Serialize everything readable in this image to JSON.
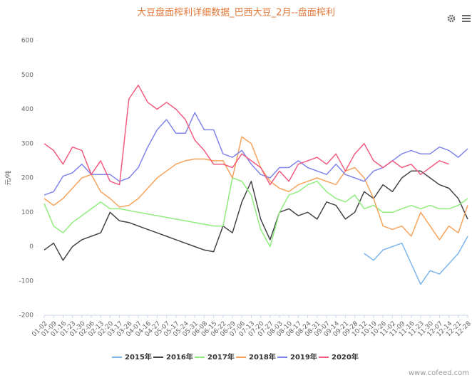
{
  "chart_data": {
    "type": "line",
    "title": "大豆盘面榨利详细数据_巴西大豆_2月--盘面榨利",
    "y_label": "元/吨",
    "source": "www.cofeed.com",
    "categories": [
      "01-02",
      "01-09",
      "01-16",
      "01-23",
      "01-30",
      "02-06",
      "02-13",
      "02-20",
      "03-17",
      "03-26",
      "04-07",
      "04-16",
      "04-27",
      "05-07",
      "05-17",
      "05-24",
      "05-31",
      "06-08",
      "06-15",
      "06-22",
      "06-29",
      "07-06",
      "07-13",
      "07-20",
      "07-27",
      "08-03",
      "08-10",
      "08-17",
      "08-24",
      "08-31",
      "09-07",
      "09-14",
      "09-21",
      "09-28",
      "10-12",
      "10-19",
      "10-26",
      "11-02",
      "11-09",
      "11-16",
      "11-23",
      "11-30",
      "12-07",
      "12-14",
      "12-21",
      "12-28"
    ],
    "ylim": [
      -200,
      600
    ],
    "yticks": [
      -200,
      -100,
      0,
      100,
      200,
      300,
      400,
      500,
      600
    ],
    "grid": false,
    "series": [
      {
        "name": "2015年",
        "color": "#7cb5ec",
        "values": [
          null,
          null,
          null,
          null,
          null,
          null,
          null,
          null,
          null,
          null,
          null,
          null,
          null,
          null,
          null,
          null,
          null,
          null,
          null,
          null,
          null,
          null,
          null,
          null,
          null,
          null,
          null,
          null,
          null,
          null,
          null,
          null,
          null,
          null,
          -20,
          -40,
          -10,
          0,
          10,
          -50,
          -110,
          -70,
          -80,
          -50,
          -20,
          30
        ]
      },
      {
        "name": "2016年",
        "color": "#434348",
        "values": [
          -10,
          10,
          -40,
          0,
          20,
          30,
          40,
          100,
          75,
          70,
          60,
          50,
          40,
          30,
          20,
          10,
          0,
          -10,
          -15,
          60,
          40,
          130,
          190,
          80,
          20,
          100,
          110,
          90,
          100,
          80,
          130,
          120,
          80,
          100,
          160,
          140,
          180,
          160,
          200,
          220,
          220,
          200,
          180,
          170,
          140,
          80
        ]
      },
      {
        "name": "2017年",
        "color": "#90ed7d",
        "values": [
          125,
          60,
          40,
          70,
          90,
          110,
          130,
          110,
          110,
          105,
          100,
          95,
          90,
          85,
          80,
          75,
          70,
          65,
          60,
          60,
          200,
          190,
          150,
          50,
          0,
          100,
          150,
          160,
          180,
          190,
          160,
          140,
          130,
          150,
          110,
          120,
          100,
          100,
          110,
          120,
          110,
          120,
          110,
          110,
          120,
          140
        ]
      },
      {
        "name": "2018年",
        "color": "#f7a35c",
        "values": [
          140,
          120,
          140,
          170,
          200,
          210,
          160,
          140,
          115,
          120,
          140,
          170,
          200,
          220,
          240,
          250,
          255,
          255,
          250,
          250,
          200,
          320,
          300,
          230,
          190,
          170,
          160,
          180,
          190,
          200,
          190,
          180,
          220,
          230,
          200,
          140,
          60,
          50,
          60,
          30,
          100,
          60,
          20,
          60,
          40,
          120
        ]
      },
      {
        "name": "2019年",
        "color": "#8085e9",
        "values": [
          150,
          160,
          205,
          215,
          240,
          210,
          210,
          210,
          190,
          200,
          230,
          290,
          340,
          370,
          330,
          330,
          390,
          340,
          340,
          270,
          260,
          280,
          240,
          210,
          200,
          230,
          230,
          250,
          230,
          220,
          210,
          240,
          210,
          200,
          190,
          220,
          230,
          250,
          270,
          280,
          270,
          270,
          290,
          280,
          260,
          285
        ]
      },
      {
        "name": "2020年",
        "color": "#f15c80",
        "values": [
          300,
          280,
          240,
          290,
          280,
          210,
          250,
          190,
          180,
          430,
          470,
          420,
          400,
          420,
          400,
          370,
          310,
          280,
          240,
          240,
          230,
          270,
          250,
          230,
          180,
          220,
          190,
          240,
          250,
          260,
          240,
          270,
          220,
          270,
          300,
          250,
          230,
          250,
          230,
          240,
          210,
          230,
          250,
          240,
          null,
          null
        ]
      }
    ]
  }
}
